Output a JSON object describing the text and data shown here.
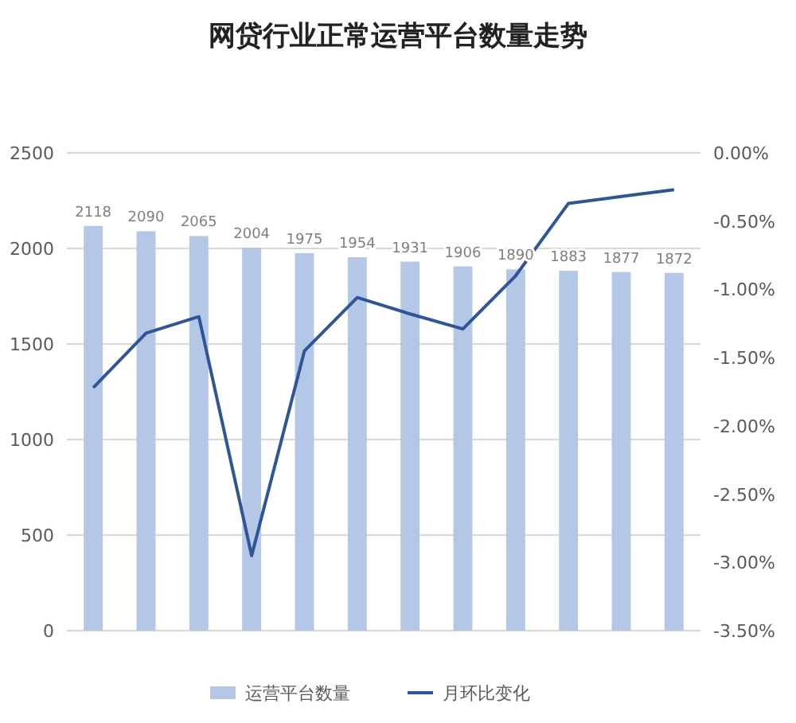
{
  "chart_data": {
    "type": "bar",
    "title": "网贷行业正常运营平台数量走势",
    "categories": [
      null,
      null,
      null,
      null,
      null,
      null,
      null,
      null,
      null,
      null,
      null,
      null
    ],
    "series": [
      {
        "name": "运营平台数量",
        "color": "#b4c7e7",
        "values": [
          2118,
          2090,
          2065,
          2004,
          1975,
          1954,
          1931,
          1906,
          1890,
          1883,
          1877,
          1872
        ],
        "value_labels": [
          "2118",
          "2090",
          "2065",
          "2004",
          "1975",
          "1954",
          "1931",
          "1906",
          "1890",
          "1883",
          "1877",
          "1872"
        ]
      },
      {
        "name": "月环比变化",
        "type": "line",
        "axis": "y2",
        "color": "#2f5597",
        "values": [
          -1.72,
          -1.32,
          -1.2,
          -2.95,
          -1.45,
          -1.06,
          -1.18,
          -1.29,
          -0.9,
          -0.37,
          -0.32,
          -0.27
        ]
      }
    ],
    "ylim": [
      0,
      2500
    ],
    "yticks": [
      0,
      500,
      1000,
      1500,
      2000,
      2500
    ],
    "y2lim": [
      -3.5,
      0
    ],
    "y2ticks": [
      {
        "value": 0,
        "label": "0.00%"
      },
      {
        "value": -0.5,
        "label": "-0.50%"
      },
      {
        "value": -1,
        "label": "-1.00%"
      },
      {
        "value": -1.5,
        "label": "-1.50%"
      },
      {
        "value": -2,
        "label": "-2.00%"
      },
      {
        "value": -2.5,
        "label": "-2.50%"
      },
      {
        "value": -3,
        "label": "-3.00%"
      },
      {
        "value": -3.5,
        "label": "-3.50%"
      }
    ],
    "grid": "y",
    "legend": "bottom"
  }
}
